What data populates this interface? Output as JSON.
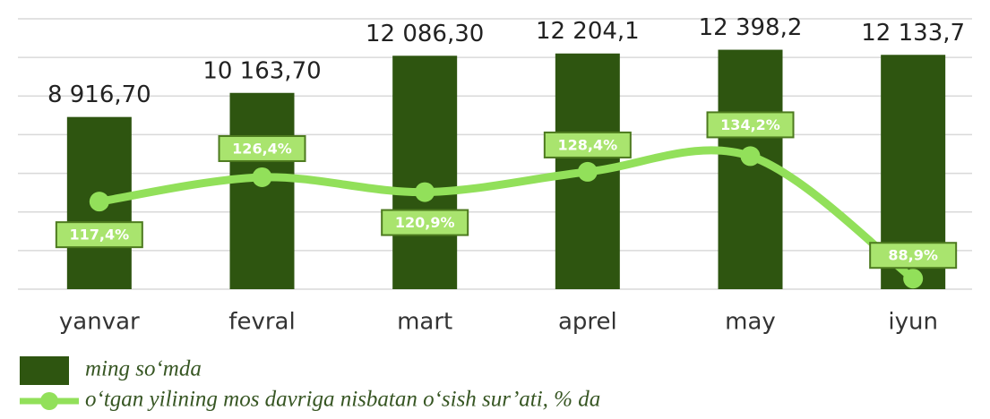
{
  "chart_data": {
    "type": "bar+line",
    "categories": [
      "yanvar",
      "fevral",
      "mart",
      "aprel",
      "may",
      "iyun"
    ],
    "ylim": [
      0,
      14000
    ],
    "yticks": [
      0,
      2000,
      4000,
      6000,
      8000,
      10000,
      12000,
      14000
    ],
    "grid": true,
    "y2lim": [
      85,
      185
    ],
    "series": [
      {
        "name": "ming so‘mda",
        "type": "bar",
        "color": "#2e5510",
        "values": [
          8916.7,
          10163.7,
          12086.3,
          12204.1,
          12398.2,
          12133.7
        ],
        "value_labels": [
          "8 916,70",
          "10 163,70",
          "12 086,30",
          "12 204,1",
          "12 398,2",
          "12 133,7"
        ]
      },
      {
        "name": "o‘tgan yilining mos davriga nisbatan o‘sish sur’ati, % da",
        "type": "line",
        "axis": "y2",
        "color": "#92e05a",
        "values": [
          117.4,
          126.4,
          120.9,
          128.4,
          134.2,
          88.9
        ],
        "value_labels": [
          "117,4%",
          "126,4%",
          "120,9%",
          "128,4%",
          "134,2%",
          "88,9%"
        ]
      }
    ],
    "legend": "bottom-left"
  }
}
